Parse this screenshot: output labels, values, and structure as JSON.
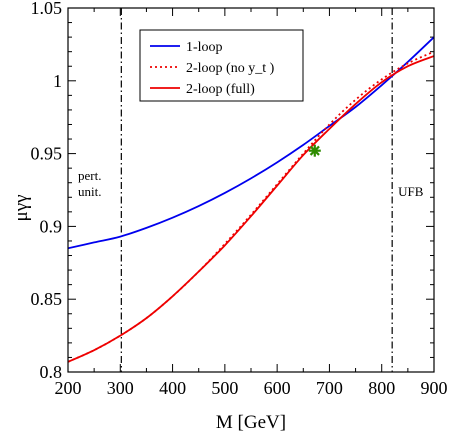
{
  "chart_data": {
    "type": "line",
    "xlabel": "M  [GeV]",
    "ylabel": "μγγ",
    "xlim": [
      200,
      900
    ],
    "ylim": [
      0.8,
      1.05
    ],
    "x_ticks": [
      200,
      300,
      400,
      500,
      600,
      700,
      800,
      900
    ],
    "y_ticks": [
      0.8,
      0.85,
      0.9,
      0.95,
      1,
      1.05
    ],
    "x_tick_labels": [
      "200",
      "300",
      "400",
      "500",
      "600",
      "700",
      "800",
      "900"
    ],
    "y_tick_labels": [
      "0.8",
      "0.85",
      "0.9",
      "0.95",
      "1",
      "1.05"
    ],
    "grid": false,
    "legend_position": "top-center",
    "series": [
      {
        "name": "1-loop",
        "color": "#0000ee",
        "dash": "solid",
        "x": [
          200,
          250,
          300,
          350,
          400,
          450,
          500,
          550,
          600,
          650,
          700,
          750,
          800,
          850,
          900
        ],
        "y": [
          0.885,
          0.889,
          0.893,
          0.899,
          0.906,
          0.914,
          0.923,
          0.933,
          0.944,
          0.956,
          0.969,
          0.982,
          0.997,
          1.013,
          1.03
        ]
      },
      {
        "name": "2-loop (no y_t )",
        "color": "#ee0000",
        "dash": "dotted",
        "x": [
          200,
          250,
          300,
          350,
          400,
          450,
          500,
          550,
          600,
          650,
          700,
          750,
          800,
          850,
          900
        ],
        "y": [
          0.807,
          0.815,
          0.825,
          0.837,
          0.852,
          0.869,
          0.888,
          0.908,
          0.929,
          0.95,
          0.97,
          0.987,
          1.001,
          1.012,
          1.02
        ]
      },
      {
        "name": "2-loop (full)",
        "color": "#ee0000",
        "dash": "solid",
        "x": [
          200,
          250,
          300,
          350,
          400,
          450,
          500,
          550,
          600,
          650,
          700,
          750,
          800,
          850,
          900
        ],
        "y": [
          0.807,
          0.815,
          0.825,
          0.837,
          0.852,
          0.869,
          0.887,
          0.907,
          0.928,
          0.949,
          0.967,
          0.984,
          0.999,
          1.01,
          1.017
        ]
      }
    ],
    "vertical_lines": [
      {
        "x": 302,
        "style": "dash-dot",
        "label": [
          "pert.",
          "unit."
        ]
      },
      {
        "x": 820,
        "style": "dash-dot",
        "label": [
          "UFB"
        ]
      }
    ],
    "marker": {
      "x": 672,
      "y": 0.952,
      "color": "#2e8b00",
      "symbol": "star"
    }
  }
}
